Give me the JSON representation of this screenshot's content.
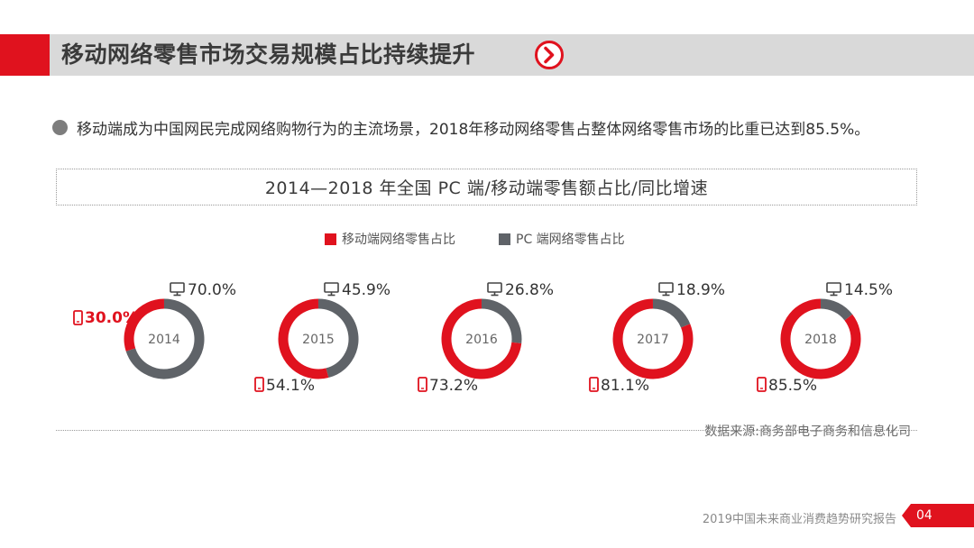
{
  "header": {
    "title": "移动网络零售市场交易规模占比持续提升"
  },
  "summary": {
    "text": "移动端成为中国网民完成网络购物行为的主流场景，2018年移动网络零售占整体网络零售市场的比重已达到85.5%。"
  },
  "chart_data": {
    "type": "pie",
    "title": "2014—2018 年全国 PC 端/移动端零售额占比/同比增速",
    "categories": [
      "2014",
      "2015",
      "2016",
      "2017",
      "2018"
    ],
    "series": [
      {
        "name": "移动端网络零售占比",
        "values": [
          30.0,
          54.1,
          73.2,
          81.1,
          85.5
        ],
        "labels": [
          "30.0%",
          "54.1%",
          "73.2%",
          "81.1%",
          "85.5%"
        ],
        "color": "#e0121e",
        "icon": "mobile-phone-icon"
      },
      {
        "name": "PC 端网络零售占比",
        "values": [
          70.0,
          45.9,
          26.8,
          18.9,
          14.5
        ],
        "labels": [
          "70.0%",
          "45.9%",
          "26.8%",
          "18.9%",
          "14.5%"
        ],
        "color": "#5f6368",
        "icon": "monitor-icon"
      }
    ],
    "legend_position": "top"
  },
  "source": "数据来源:商务部电子商务和信息化司",
  "footer": {
    "report": "2019中国未来商业消费趋势研究报告",
    "page": "04"
  },
  "colors": {
    "accent": "#e0121e",
    "header_bg": "#d9d9d9",
    "pc": "#5f6368"
  }
}
